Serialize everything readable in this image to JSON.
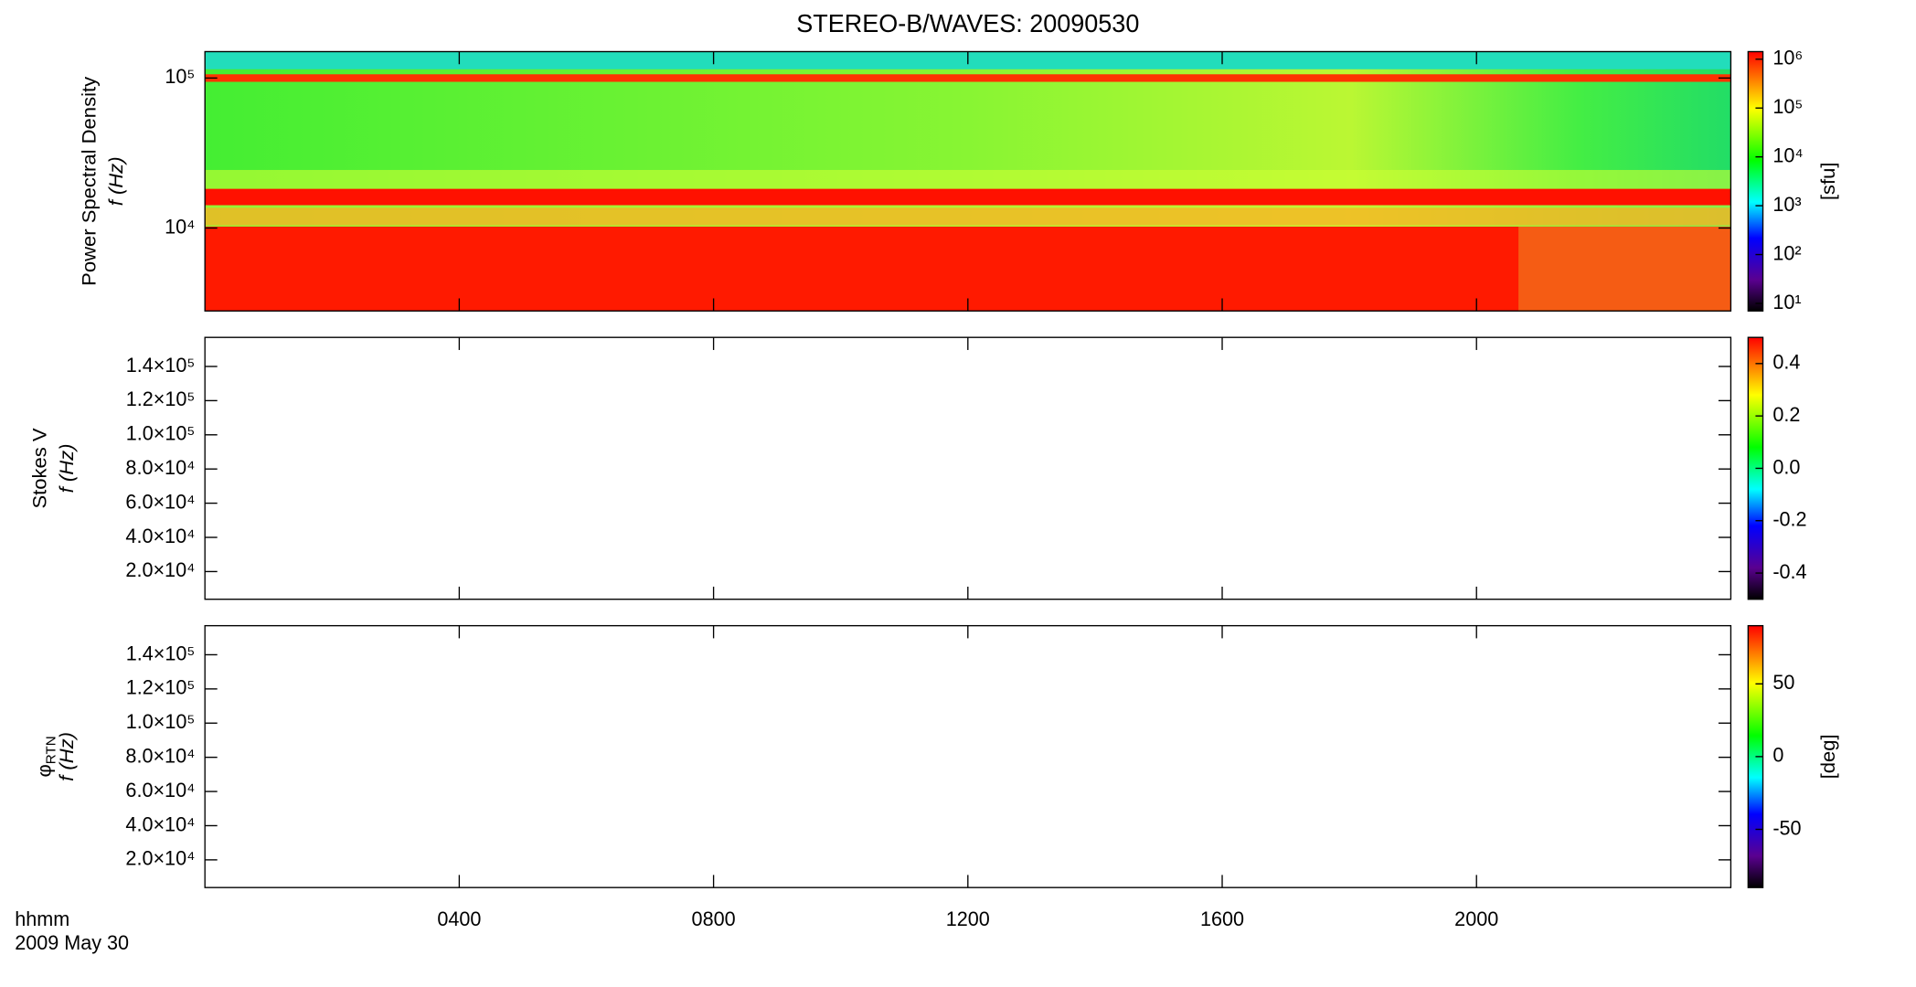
{
  "chart_data": [
    {
      "type": "heatmap",
      "title": "STEREO-B/WAVES: 20090530",
      "ylabel": [
        "Power Spectral Density",
        "f (Hz)"
      ],
      "ylog": true,
      "ylim": [
        2800,
        150000
      ],
      "yticks": [
        {
          "value": 10000,
          "label": "10⁴"
        },
        {
          "value": 100000,
          "label": "10⁵"
        }
      ],
      "colorbar": {
        "log": true,
        "label": "[sfu]",
        "clim": [
          7,
          1430000
        ],
        "ticks": [
          {
            "value": 10,
            "label": "10¹"
          },
          {
            "value": 100,
            "label": "10²"
          },
          {
            "value": 1000,
            "label": "10³"
          },
          {
            "value": 10000,
            "label": "10⁴"
          },
          {
            "value": 100000,
            "label": "10⁵"
          },
          {
            "value": 1000000,
            "label": "10⁶"
          }
        ]
      }
    },
    {
      "type": "heatmap",
      "ylabel": [
        "Stokes V",
        "f (Hz)"
      ],
      "ylog": false,
      "ylim": [
        3800,
        157000
      ],
      "yticks": [
        {
          "value": 20000,
          "label": "2.0×10⁴"
        },
        {
          "value": 40000,
          "label": "4.0×10⁴"
        },
        {
          "value": 60000,
          "label": "6.0×10⁴"
        },
        {
          "value": 80000,
          "label": "8.0×10⁴"
        },
        {
          "value": 100000,
          "label": "1.0×10⁵"
        },
        {
          "value": 120000,
          "label": "1.2×10⁵"
        },
        {
          "value": 140000,
          "label": "1.4×10⁵"
        }
      ],
      "colorbar": {
        "log": false,
        "clim": [
          -0.5,
          0.5
        ],
        "ticks": [
          -0.4,
          -0.2,
          {
            "value": 0,
            "label": "0.0"
          },
          0.2,
          0.4
        ]
      }
    },
    {
      "type": "heatmap",
      "ylabel": [
        "φ",
        "f (Hz)"
      ],
      "ylabel_subscript": "RTN",
      "ylog": false,
      "ylim": [
        3800,
        157000
      ],
      "yticks": [
        {
          "value": 20000,
          "label": "2.0×10⁴"
        },
        {
          "value": 40000,
          "label": "4.0×10⁴"
        },
        {
          "value": 60000,
          "label": "6.0×10⁴"
        },
        {
          "value": 80000,
          "label": "8.0×10⁴"
        },
        {
          "value": 100000,
          "label": "1.0×10⁵"
        },
        {
          "value": 120000,
          "label": "1.2×10⁵"
        },
        {
          "value": 140000,
          "label": "1.4×10⁵"
        }
      ],
      "colorbar": {
        "log": false,
        "label": "[deg]",
        "clim": [
          -90,
          90
        ],
        "ticks": [
          -50,
          0,
          50
        ]
      },
      "xlabel": "hhmm",
      "date": "2009 May 30",
      "xlim": [
        0,
        24
      ],
      "xticks": [
        {
          "value": 4,
          "label": "0400"
        },
        {
          "value": 8,
          "label": "0800"
        },
        {
          "value": 12,
          "label": "1200"
        },
        {
          "value": 16,
          "label": "1600"
        },
        {
          "value": 20,
          "label": "2000"
        }
      ]
    }
  ]
}
